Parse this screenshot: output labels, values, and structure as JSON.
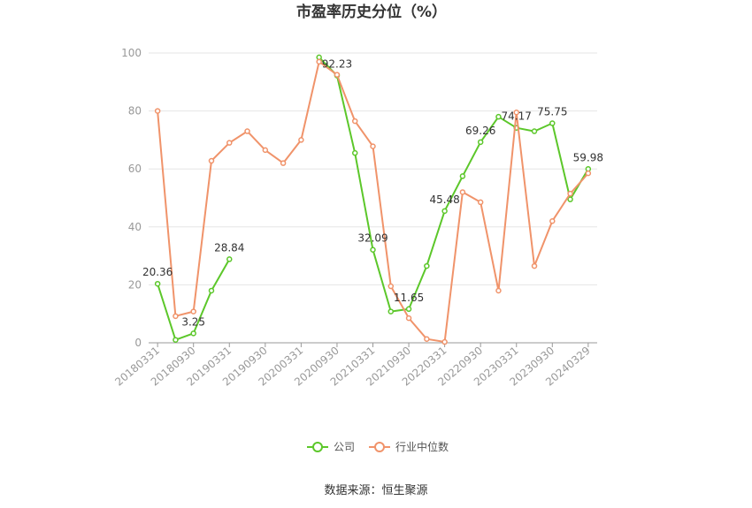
{
  "chart_data": {
    "type": "line",
    "title": "市盈率历史分位（%）",
    "xlabel": "",
    "ylabel": "",
    "ylim": [
      0,
      100
    ],
    "yticks": [
      0,
      20,
      40,
      60,
      80,
      100
    ],
    "grid": true,
    "legend_position": "bottom",
    "x": [
      "20180331",
      "20180630",
      "20180930",
      "20181231",
      "20190331",
      "20190630",
      "20190930",
      "20191231",
      "20200331",
      "20200630",
      "20200930",
      "20201231",
      "20210331",
      "20210630",
      "20210930",
      "20211231",
      "20220331",
      "20220630",
      "20220930",
      "20221231",
      "20230331",
      "20230630",
      "20230930",
      "20231231",
      "20240329"
    ],
    "xtick_labels": [
      "20180331",
      "20180930",
      "20190331",
      "20190930",
      "20200331",
      "20200930",
      "20210331",
      "20210930",
      "20220331",
      "20220930",
      "20230331",
      "20230930",
      "20240329"
    ],
    "series": [
      {
        "name": "公司",
        "color": "#5cc72a",
        "values": [
          20.36,
          1.0,
          3.25,
          18.0,
          28.84,
          null,
          null,
          null,
          null,
          98.5,
          92.23,
          65.5,
          32.09,
          10.8,
          11.65,
          26.5,
          45.48,
          57.5,
          69.26,
          78.0,
          74.17,
          73.0,
          75.75,
          49.5,
          59.98
        ]
      },
      {
        "name": "行业中位数",
        "color": "#f0936a",
        "values": [
          80.0,
          9.2,
          10.8,
          62.8,
          69.0,
          73.0,
          66.5,
          62.0,
          70.0,
          97.0,
          92.5,
          76.5,
          67.8,
          19.5,
          8.5,
          1.3,
          0.3,
          52.0,
          48.5,
          18.0,
          79.5,
          26.5,
          42.0,
          51.5,
          58.5
        ]
      }
    ],
    "data_labels": [
      {
        "series": 0,
        "index": 0,
        "text": "20.36"
      },
      {
        "series": 0,
        "index": 2,
        "text": "3.25"
      },
      {
        "series": 0,
        "index": 4,
        "text": "28.84"
      },
      {
        "series": 0,
        "index": 10,
        "text": "92.23"
      },
      {
        "series": 0,
        "index": 12,
        "text": "32.09"
      },
      {
        "series": 0,
        "index": 14,
        "text": "11.65"
      },
      {
        "series": 0,
        "index": 16,
        "text": "45.48"
      },
      {
        "series": 0,
        "index": 18,
        "text": "69.26"
      },
      {
        "series": 0,
        "index": 20,
        "text": "74.17"
      },
      {
        "series": 0,
        "index": 22,
        "text": "75.75"
      },
      {
        "series": 0,
        "index": 24,
        "text": "59.98"
      }
    ]
  },
  "footer": {
    "source": "数据来源：恒生聚源"
  }
}
